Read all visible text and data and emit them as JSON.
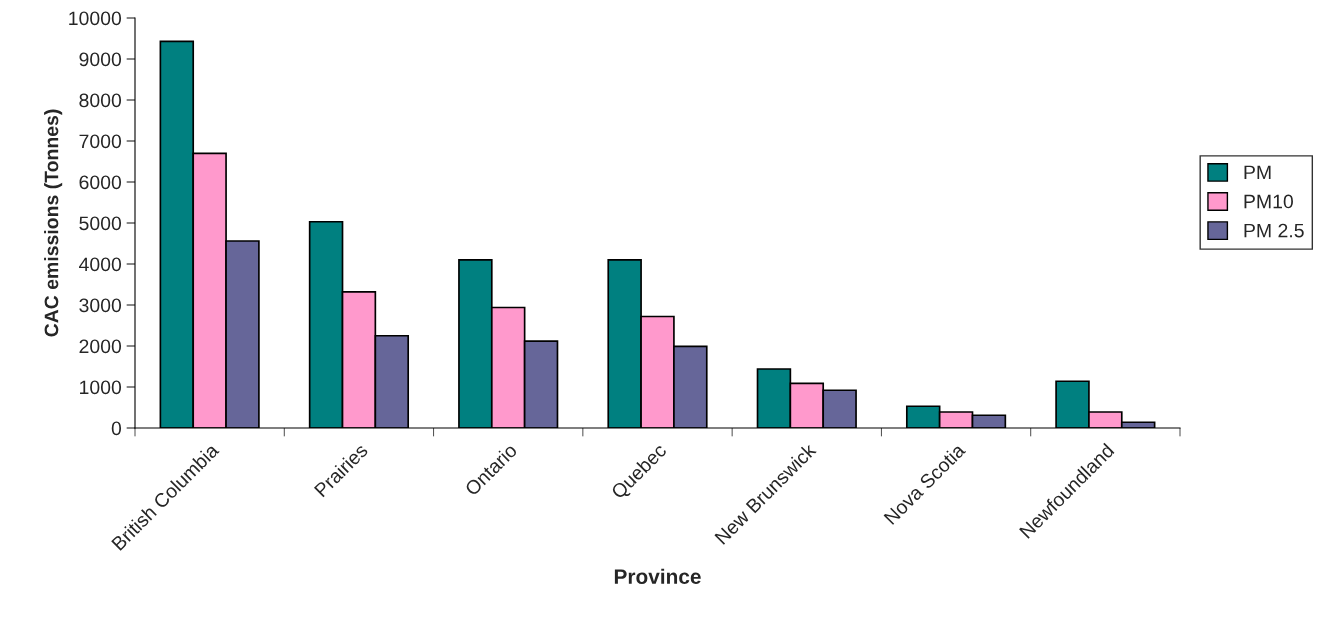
{
  "chart_data": {
    "type": "bar",
    "xlabel": "Province",
    "ylabel": "CAC emissions (Tonnes)",
    "categories": [
      "British Columbia",
      "Prairies",
      "Ontario",
      "Quebec",
      "New Brunswick",
      "Nova Scotia",
      "Newfoundland"
    ],
    "series": [
      {
        "name": "PM",
        "color": "#008080",
        "values": [
          9430,
          5030,
          4100,
          4100,
          1440,
          530,
          1140
        ]
      },
      {
        "name": "PM10",
        "color": "#ff99cc",
        "values": [
          6700,
          3320,
          2940,
          2720,
          1090,
          390,
          390
        ]
      },
      {
        "name": "PM 2.5",
        "color": "#666699",
        "values": [
          4560,
          2250,
          2120,
          1990,
          920,
          310,
          140
        ]
      }
    ],
    "ylim": [
      0,
      10000
    ],
    "yticks": [
      0,
      1000,
      2000,
      3000,
      4000,
      5000,
      6000,
      7000,
      8000,
      9000,
      10000
    ],
    "grid": false,
    "legend": "right"
  }
}
